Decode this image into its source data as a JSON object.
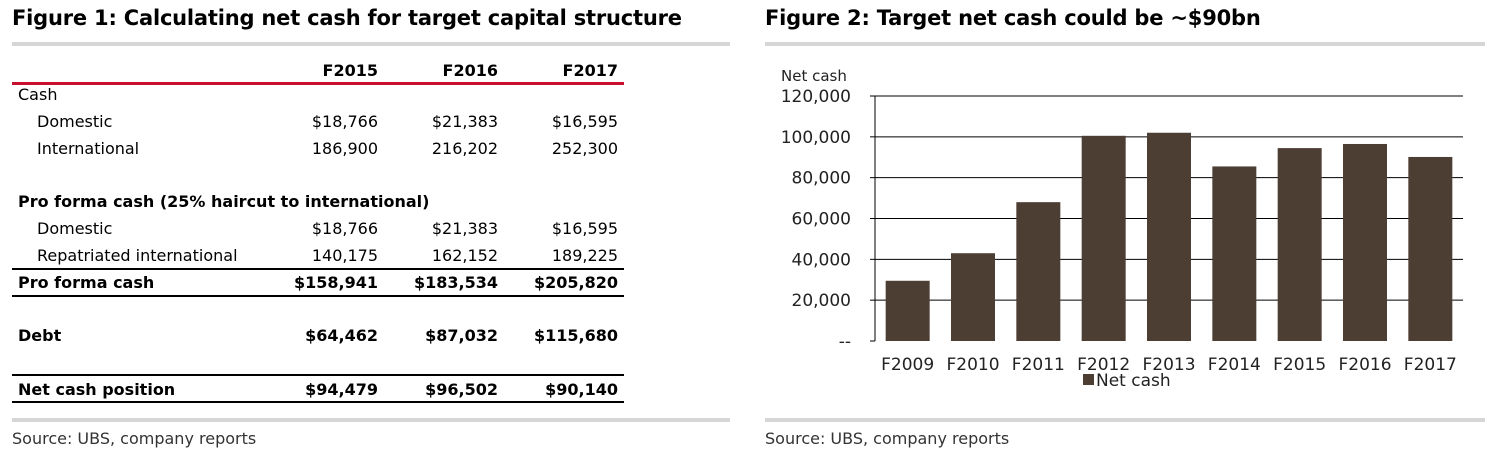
{
  "figure1": {
    "title": "Figure 1: Calculating net cash for target capital structure",
    "columns": [
      "F2015",
      "F2016",
      "F2017"
    ],
    "rows": [
      {
        "label": "Cash",
        "values": [
          "",
          "",
          ""
        ],
        "style": "section"
      },
      {
        "label": "Domestic",
        "values": [
          "$18,766",
          "$21,383",
          "$16,595"
        ],
        "style": "indent"
      },
      {
        "label": "International",
        "values": [
          "186,900",
          "216,202",
          "252,300"
        ],
        "style": "indent"
      },
      {
        "label": "Pro forma cash (25% haircut to international)",
        "values": [
          "",
          "",
          ""
        ],
        "style": "section-bold"
      },
      {
        "label": "Domestic",
        "values": [
          "$18,766",
          "$21,383",
          "$16,595"
        ],
        "style": "indent"
      },
      {
        "label": "Repatriated international",
        "values": [
          "140,175",
          "162,152",
          "189,225"
        ],
        "style": "indent"
      },
      {
        "label": "Pro forma cash",
        "values": [
          "$158,941",
          "$183,534",
          "$205,820"
        ],
        "style": "total"
      },
      {
        "label": "Debt",
        "values": [
          "$64,462",
          "$87,032",
          "$115,680"
        ],
        "style": "total"
      },
      {
        "label": "Net cash position",
        "values": [
          "$94,479",
          "$96,502",
          "$90,140"
        ],
        "style": "total"
      }
    ],
    "source": "Source:  UBS, company reports"
  },
  "figure2": {
    "title": "Figure 2: Target net cash could be ~$90bn",
    "source": "Source:  UBS, company reports",
    "bar_color": "#4d3e33"
  },
  "chart_data": {
    "type": "bar",
    "title": "Figure 2: Target net cash could be ~$90bn",
    "ylabel": "Net cash",
    "xlabel": "",
    "categories": [
      "F2009",
      "F2010",
      "F2011",
      "F2012",
      "F2013",
      "F2014",
      "F2015",
      "F2016",
      "F2017"
    ],
    "series": [
      {
        "name": "Net cash",
        "values": [
          29500,
          43000,
          68000,
          100500,
          102000,
          85500,
          94479,
          96502,
          90140
        ]
      }
    ],
    "ylim": [
      0,
      120000
    ],
    "yticks": [
      0,
      20000,
      40000,
      60000,
      80000,
      100000,
      120000
    ],
    "ytick_labels": [
      "--",
      "20,000",
      "40,000",
      "60,000",
      "80,000",
      "100,000",
      "120,000"
    ],
    "grid": true,
    "legend": "bottom"
  }
}
